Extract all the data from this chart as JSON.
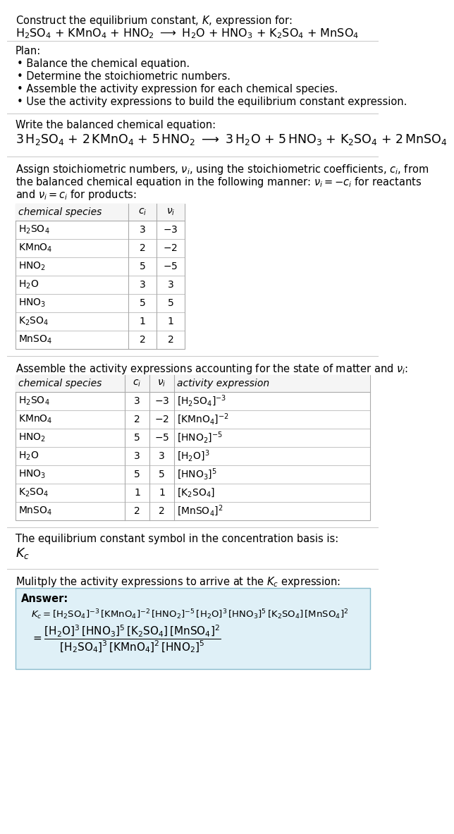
{
  "bg_color": "#ffffff",
  "text_color": "#000000",
  "table_border_color": "#aaaaaa",
  "answer_box_color": "#dff0f7",
  "answer_box_border": "#88bbcc",
  "font_size": 10.5,
  "font_size_table": 10.0,
  "sections": [
    {
      "type": "text",
      "content": "Construct the equilibrium constant, $K$, expression for:"
    },
    {
      "type": "text_math",
      "content": "$\\mathrm{H_2SO_4}$ + $\\mathrm{KMnO_4}$ + $\\mathrm{HNO_2}$ $\\longrightarrow$ $\\mathrm{H_2O}$ + $\\mathrm{HNO_3}$ + $\\mathrm{K_2SO_4}$ + $\\mathrm{MnSO_4}$"
    },
    {
      "type": "hline"
    },
    {
      "type": "vspace",
      "size": 6
    },
    {
      "type": "text",
      "content": "Plan:"
    },
    {
      "type": "bullet",
      "content": "Balance the chemical equation."
    },
    {
      "type": "bullet",
      "content": "Determine the stoichiometric numbers."
    },
    {
      "type": "bullet",
      "content": "Assemble the activity expression for each chemical species."
    },
    {
      "type": "bullet",
      "content": "Use the activity expressions to build the equilibrium constant expression."
    },
    {
      "type": "vspace",
      "size": 6
    },
    {
      "type": "hline"
    },
    {
      "type": "vspace",
      "size": 8
    },
    {
      "type": "text",
      "content": "Write the balanced chemical equation:"
    },
    {
      "type": "text_math_large",
      "content": "$3\\,\\mathrm{H_2SO_4}$ + $2\\,\\mathrm{KMnO_4}$ + $5\\,\\mathrm{HNO_2}$ $\\longrightarrow$ $3\\,\\mathrm{H_2O}$ + $5\\,\\mathrm{HNO_3}$ + $\\mathrm{K_2SO_4}$ + $2\\,\\mathrm{MnSO_4}$"
    },
    {
      "type": "vspace",
      "size": 10
    },
    {
      "type": "hline"
    },
    {
      "type": "vspace",
      "size": 8
    },
    {
      "type": "text_wrap",
      "lines": [
        "Assign stoichiometric numbers, $\\nu_i$, using the stoichiometric coefficients, $c_i$, from",
        "the balanced chemical equation in the following manner: $\\nu_i = -c_i$ for reactants",
        "and $\\nu_i = c_i$ for products:"
      ]
    },
    {
      "type": "table1",
      "headers": [
        "chemical species",
        "$c_i$",
        "$\\nu_i$"
      ],
      "rows": [
        [
          "$\\mathrm{H_2SO_4}$",
          "3",
          "$-3$"
        ],
        [
          "$\\mathrm{KMnO_4}$",
          "2",
          "$-2$"
        ],
        [
          "$\\mathrm{HNO_2}$",
          "5",
          "$-5$"
        ],
        [
          "$\\mathrm{H_2O}$",
          "3",
          "3"
        ],
        [
          "$\\mathrm{HNO_3}$",
          "5",
          "5"
        ],
        [
          "$\\mathrm{K_2SO_4}$",
          "1",
          "1"
        ],
        [
          "$\\mathrm{MnSO_4}$",
          "2",
          "2"
        ]
      ]
    },
    {
      "type": "vspace",
      "size": 10
    },
    {
      "type": "hline"
    },
    {
      "type": "vspace",
      "size": 8
    },
    {
      "type": "text",
      "content": "Assemble the activity expressions accounting for the state of matter and $\\nu_i$:"
    },
    {
      "type": "table2",
      "headers": [
        "chemical species",
        "$c_i$",
        "$\\nu_i$",
        "activity expression"
      ],
      "rows": [
        [
          "$\\mathrm{H_2SO_4}$",
          "3",
          "$-3$",
          "$[\\mathrm{H_2SO_4}]^{-3}$"
        ],
        [
          "$\\mathrm{KMnO_4}$",
          "2",
          "$-2$",
          "$[\\mathrm{KMnO_4}]^{-2}$"
        ],
        [
          "$\\mathrm{HNO_2}$",
          "5",
          "$-5$",
          "$[\\mathrm{HNO_2}]^{-5}$"
        ],
        [
          "$\\mathrm{H_2O}$",
          "3",
          "3",
          "$[\\mathrm{H_2O}]^3$"
        ],
        [
          "$\\mathrm{HNO_3}$",
          "5",
          "5",
          "$[\\mathrm{HNO_3}]^5$"
        ],
        [
          "$\\mathrm{K_2SO_4}$",
          "1",
          "1",
          "$[\\mathrm{K_2SO_4}]$"
        ],
        [
          "$\\mathrm{MnSO_4}$",
          "2",
          "2",
          "$[\\mathrm{MnSO_4}]^2$"
        ]
      ]
    },
    {
      "type": "vspace",
      "size": 10
    },
    {
      "type": "hline"
    },
    {
      "type": "vspace",
      "size": 8
    },
    {
      "type": "text",
      "content": "The equilibrium constant symbol in the concentration basis is:"
    },
    {
      "type": "text_math_kc",
      "content": "$K_c$"
    },
    {
      "type": "vspace",
      "size": 10
    },
    {
      "type": "hline"
    },
    {
      "type": "vspace",
      "size": 8
    },
    {
      "type": "text",
      "content": "Mulitply the activity expressions to arrive at the $K_c$ expression:"
    },
    {
      "type": "answer_box",
      "label": "Answer:",
      "line1": "$K_c = [\\mathrm{H_2SO_4}]^{-3}\\,[\\mathrm{KMnO_4}]^{-2}\\,[\\mathrm{HNO_2}]^{-5}\\,[\\mathrm{H_2O}]^3\\,[\\mathrm{HNO_3}]^5\\,[\\mathrm{K_2SO_4}]\\,[\\mathrm{MnSO_4}]^2$",
      "line2_eq": "$= \\dfrac{[\\mathrm{H_2O}]^3\\,[\\mathrm{HNO_3}]^5\\,[\\mathrm{K_2SO_4}]\\,[\\mathrm{MnSO_4}]^2}{[\\mathrm{H_2SO_4}]^3\\,[\\mathrm{KMnO_4}]^2\\,[\\mathrm{HNO_2}]^5}$"
    }
  ]
}
